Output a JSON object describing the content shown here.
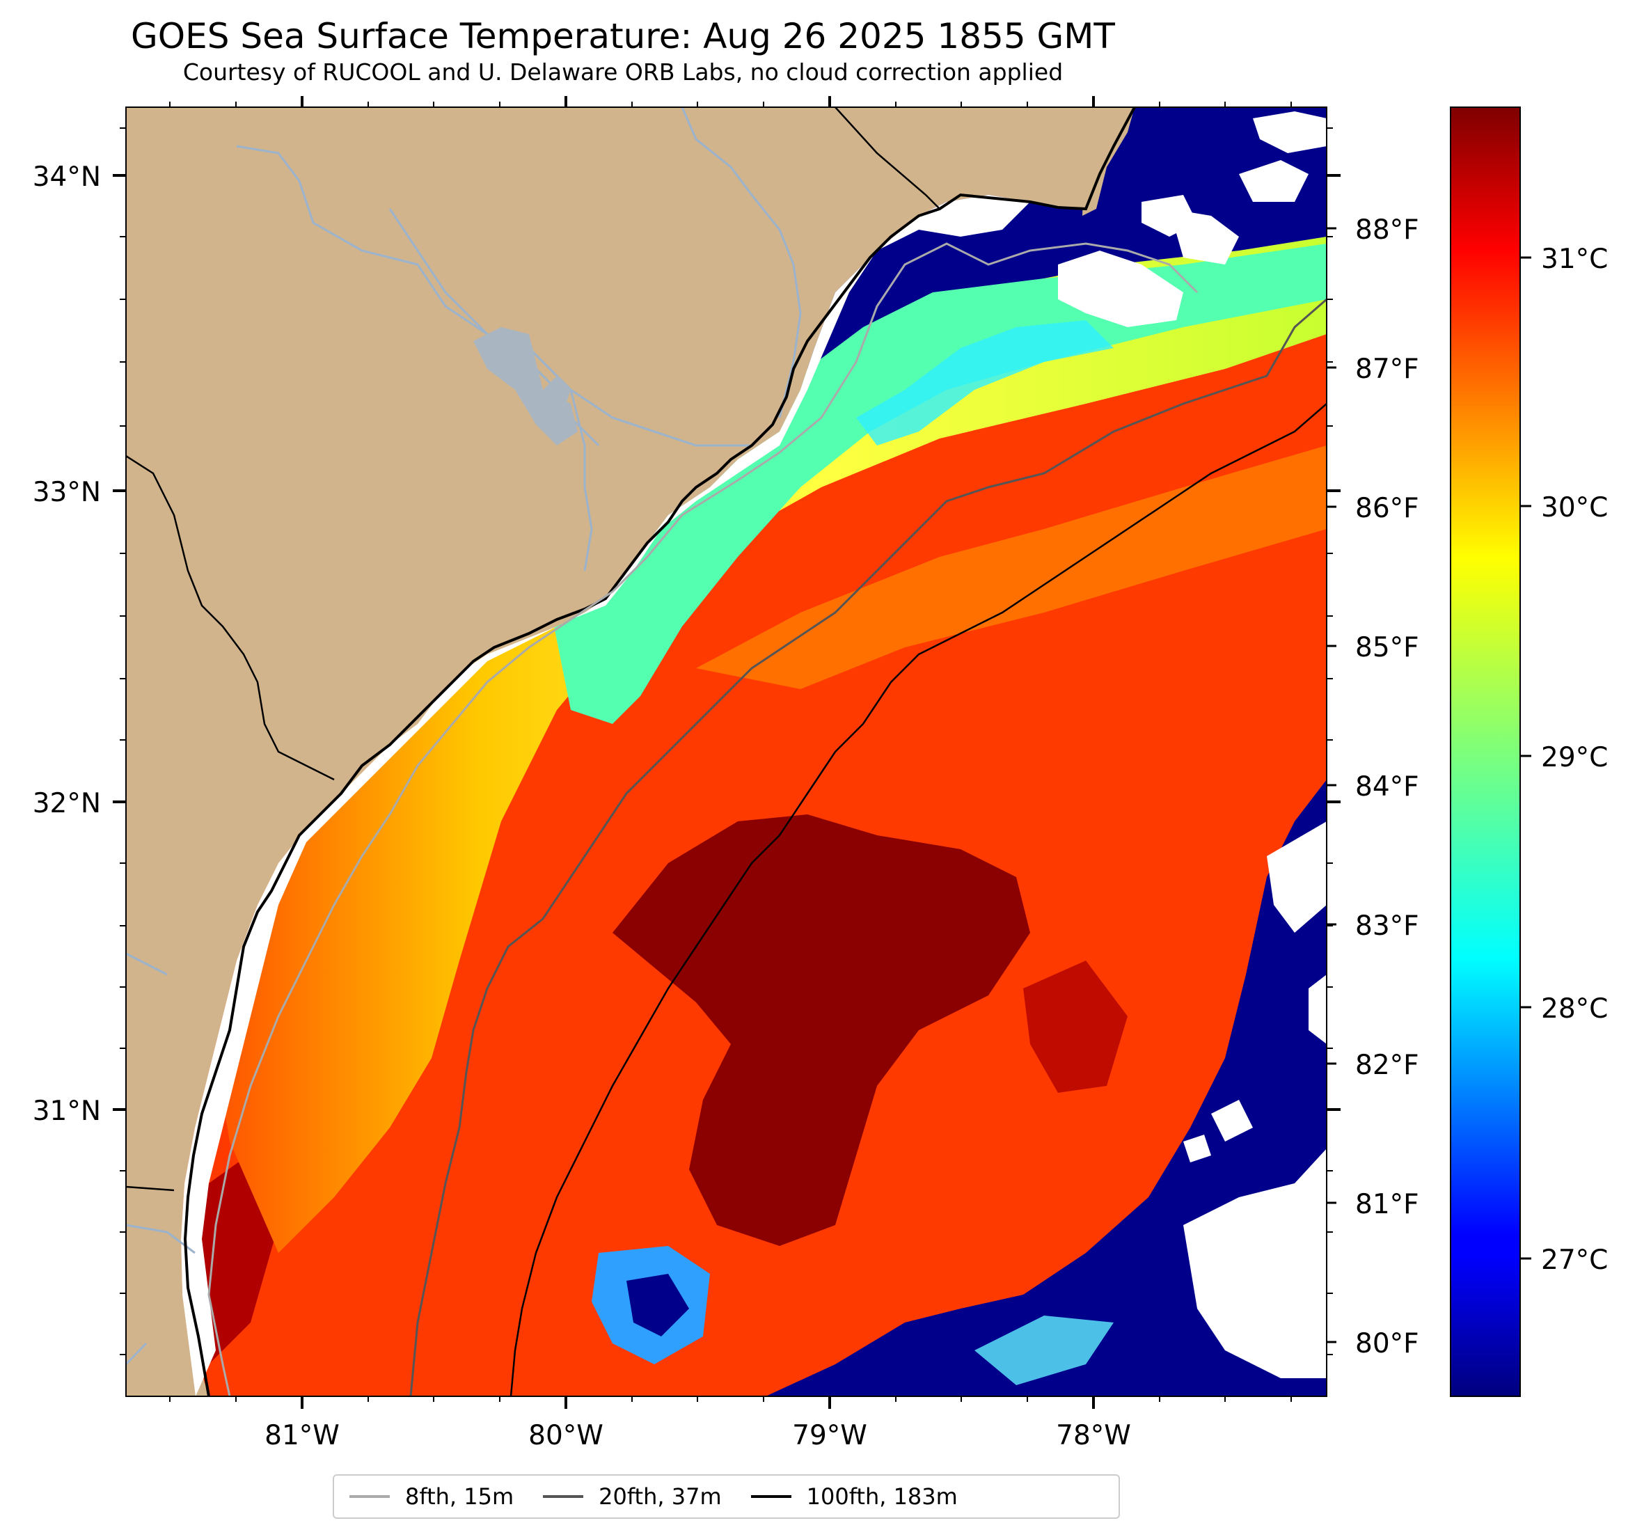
{
  "title": "GOES Sea Surface Temperature: Aug 26 2025 1855 GMT",
  "subtitle": "Courtesy of RUCOOL and U. Delaware ORB Labs, no cloud correction applied",
  "colors": {
    "land": "#d2b48c",
    "cloud": "#ffffff",
    "coastline": "#000000",
    "river": "#9bb3cc",
    "cold_water": "#00008b",
    "colormap": "jet",
    "isobath_8fth": "#aaaaaa",
    "isobath_20fth": "#555555",
    "isobath_100fth": "#000000"
  },
  "map": {
    "lon_range": [
      -81.67,
      -77.12
    ],
    "lat_range": [
      30.12,
      34.22
    ],
    "lon_ticks": [
      "81°W",
      "80°W",
      "79°W",
      "78°W"
    ],
    "lat_ticks": [
      "34°N",
      "33°N",
      "32°N",
      "31°N"
    ],
    "scale_bar_ticks": [
      "88°F",
      "87°F",
      "86°F",
      "85°F",
      "84°F",
      "83°F",
      "82°F",
      "81°F",
      "80°F"
    ]
  },
  "colorbar": {
    "unit": "°C",
    "range": [
      26.5,
      31.7
    ],
    "ticks": [
      "31°C",
      "30°C",
      "29°C",
      "28°C",
      "27°C"
    ]
  },
  "legend": [
    {
      "label": "8fth, 15m",
      "color": "#aaaaaa"
    },
    {
      "label": "20fth, 37m",
      "color": "#555555"
    },
    {
      "label": "100fth, 183m",
      "color": "#000000"
    }
  ]
}
